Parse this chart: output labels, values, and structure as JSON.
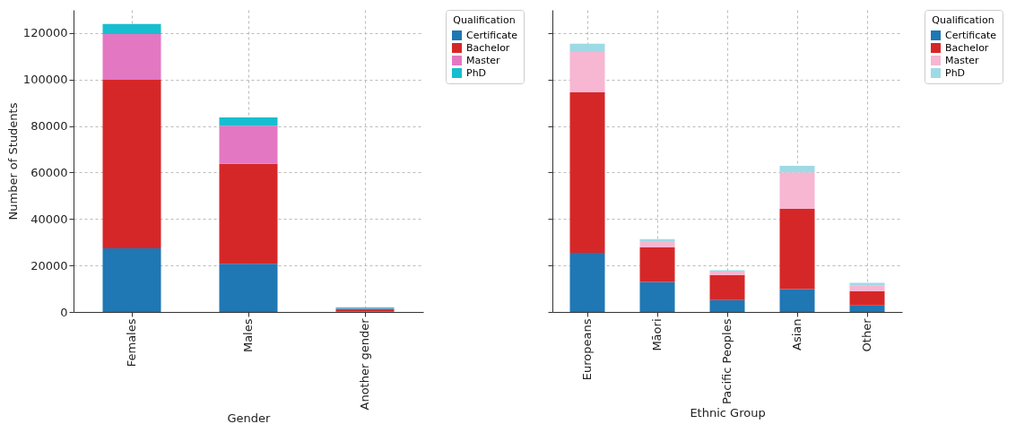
{
  "chart_data": [
    {
      "type": "bar",
      "stacked": true,
      "xlabel": "Gender",
      "ylabel": "Number of Students",
      "legend_title": "Qualification",
      "legend": "top right",
      "grid": true,
      "categories": [
        "Females",
        "Males",
        "Another gender"
      ],
      "ylim": [
        0,
        130000
      ],
      "yticks": [
        0,
        20000,
        40000,
        60000,
        80000,
        100000,
        120000
      ],
      "series": [
        {
          "name": "Certificate",
          "color": "#1f77b4",
          "values": [
            27400,
            20700,
            300
          ]
        },
        {
          "name": "Bachelor",
          "color": "#d62728",
          "values": [
            72500,
            43000,
            900
          ]
        },
        {
          "name": "Master",
          "color": "#e377c2",
          "values": [
            19700,
            16400,
            200
          ]
        },
        {
          "name": "PhD",
          "color": "#17becf",
          "values": [
            4300,
            3600,
            500
          ]
        }
      ]
    },
    {
      "type": "bar",
      "stacked": true,
      "xlabel": "Ethnic Group",
      "legend_title": "Qualification",
      "legend": "top right",
      "grid": true,
      "tick_labels": "x",
      "categories": [
        "Europeans",
        "Māori",
        "Pacific Peoples",
        "Asian",
        "Other"
      ],
      "ylim": [
        0,
        130000
      ],
      "yticks": [
        0,
        20000,
        40000,
        60000,
        80000,
        100000,
        120000
      ],
      "series": [
        {
          "name": "Certificate",
          "color": "#1f77b4",
          "values": [
            25500,
            12900,
            5100,
            9800,
            2800
          ]
        },
        {
          "name": "Bachelor",
          "color": "#d62728",
          "values": [
            69000,
            14900,
            10800,
            34600,
            6200
          ]
        },
        {
          "name": "Master",
          "color": "#f7b6d2",
          "values": [
            17400,
            2700,
            1500,
            15700,
            2300
          ]
        },
        {
          "name": "PhD",
          "color": "#9edae5",
          "values": [
            3500,
            800,
            500,
            2800,
            1200
          ]
        }
      ]
    }
  ]
}
